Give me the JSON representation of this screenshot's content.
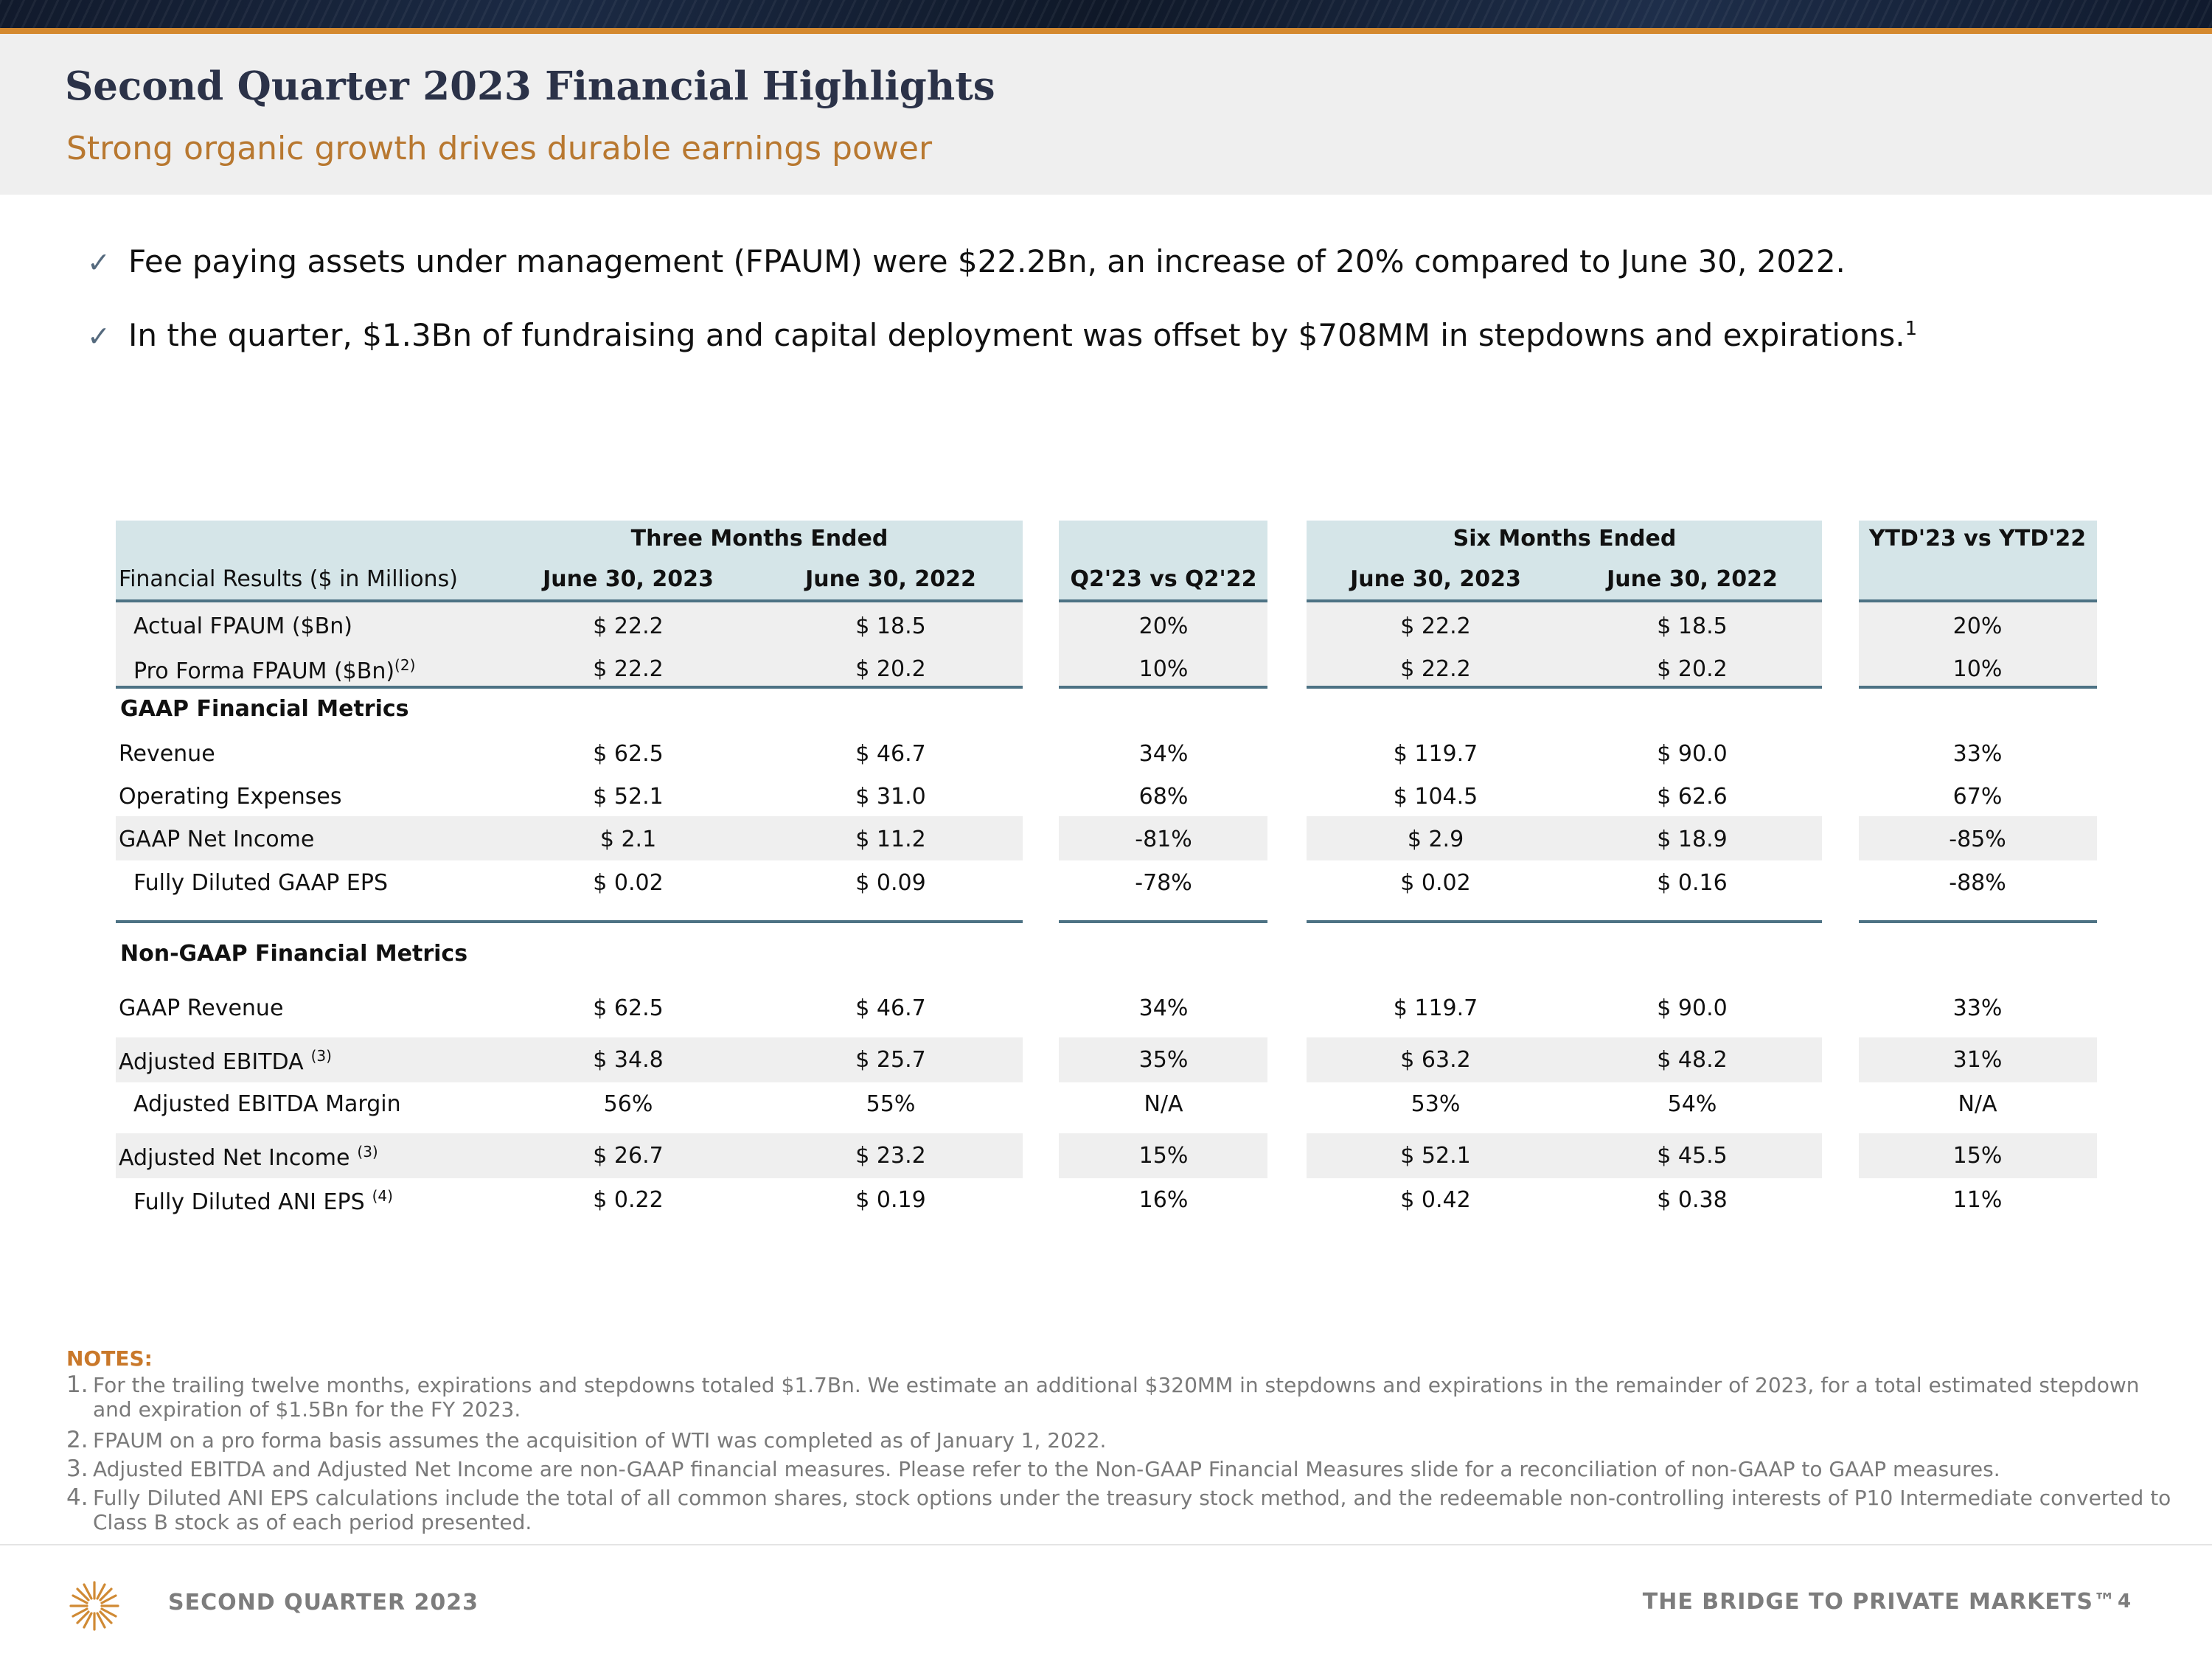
{
  "header": {
    "title": "Second Quarter 2023 Financial Highlights",
    "subtitle": "Strong organic growth drives durable earnings power"
  },
  "bullets": [
    {
      "text": "Fee paying assets under management (FPAUM) were $22.2Bn, an increase of 20% compared to June 30, 2022.",
      "sup": ""
    },
    {
      "text": "In the quarter, $1.3Bn of fundraising and capital deployment was offset by $708MM in stepdowns and expirations.",
      "sup": "1"
    }
  ],
  "bullet_icon": "checkmark-icon",
  "table": {
    "group_headers": {
      "three_months": "Three Months Ended",
      "six_months": "Six Months Ended",
      "ytd": "YTD'23 vs YTD'22"
    },
    "columns": {
      "label": "Financial Results ($ in Millions)",
      "q_2023": "June 30, 2023",
      "q_2022": "June 30, 2022",
      "q_change": "Q2'23 vs Q2'22",
      "s_2023": "June 30, 2023",
      "s_2022": "June 30, 2022"
    },
    "sections": {
      "gaap": "GAAP Financial Metrics",
      "non_gaap": "Non-GAAP Financial Metrics"
    },
    "rows": [
      {
        "label": "Actual FPAUM ($Bn)",
        "sup": "",
        "q23": "$ 22.2",
        "q22": "$ 18.5",
        "qchg": "20%",
        "s23": "$ 22.2",
        "s22": "$ 18.5",
        "ytd": "20%"
      },
      {
        "label": "Pro Forma FPAUM ($Bn)",
        "sup": "(2)",
        "q23": "$ 22.2",
        "q22": "$ 20.2",
        "qchg": "10%",
        "s23": "$ 22.2",
        "s22": "$ 20.2",
        "ytd": "10%"
      },
      {
        "label": "Revenue",
        "sup": "",
        "q23": "$ 62.5",
        "q22": "$ 46.7",
        "qchg": "34%",
        "s23": "$ 119.7",
        "s22": "$ 90.0",
        "ytd": "33%"
      },
      {
        "label": "Operating Expenses",
        "sup": "",
        "q23": "$ 52.1",
        "q22": "$ 31.0",
        "qchg": "68%",
        "s23": "$ 104.5",
        "s22": "$ 62.6",
        "ytd": "67%"
      },
      {
        "label": "GAAP Net Income",
        "sup": "",
        "q23": "$ 2.1",
        "q22": "$ 11.2",
        "qchg": "-81%",
        "s23": "$ 2.9",
        "s22": "$ 18.9",
        "ytd": "-85%"
      },
      {
        "label": "Fully Diluted GAAP EPS",
        "sup": "",
        "q23": "$ 0.02",
        "q22": "$ 0.09",
        "qchg": "-78%",
        "s23": "$ 0.02",
        "s22": "$ 0.16",
        "ytd": "-88%"
      },
      {
        "label": "GAAP Revenue",
        "sup": "",
        "q23": "$ 62.5",
        "q22": "$ 46.7",
        "qchg": "34%",
        "s23": "$ 119.7",
        "s22": "$ 90.0",
        "ytd": "33%"
      },
      {
        "label": "Adjusted EBITDA",
        "sup": "(3)",
        "q23": "$ 34.8",
        "q22": "$ 25.7",
        "qchg": "35%",
        "s23": "$ 63.2",
        "s22": "$ 48.2",
        "ytd": "31%"
      },
      {
        "label": "Adjusted EBITDA Margin",
        "sup": "",
        "q23": "56%",
        "q22": "55%",
        "qchg": "N/A",
        "s23": "53%",
        "s22": "54%",
        "ytd": "N/A"
      },
      {
        "label": "Adjusted Net Income",
        "sup": "(3)",
        "q23": "$ 26.7",
        "q22": "$ 23.2",
        "qchg": "15%",
        "s23": "$ 52.1",
        "s22": "$ 45.5",
        "ytd": "15%"
      },
      {
        "label": "Fully Diluted ANI EPS",
        "sup": "(4)",
        "q23": "$ 0.22",
        "q22": "$ 0.19",
        "qchg": "16%",
        "s23": "$ 0.42",
        "s22": "$ 0.38",
        "ytd": "11%"
      }
    ]
  },
  "notes": {
    "heading": "NOTES:",
    "items": [
      {
        "num": "1.",
        "text": "For the trailing twelve months, expirations and stepdowns totaled $1.7Bn. We estimate an additional $320MM in stepdowns and expirations in the remainder of 2023, for a total estimated stepdown and expiration of $1.5Bn for the FY 2023."
      },
      {
        "num": "2.",
        "text": "FPAUM on a pro forma basis assumes the acquisition of WTI was completed as of January 1, 2022."
      },
      {
        "num": "3.",
        "text": "Adjusted EBITDA and Adjusted Net Income are non-GAAP financial measures. Please refer to the Non-GAAP Financial Measures slide for a reconciliation of non-GAAP to GAAP measures."
      },
      {
        "num": "4.",
        "text": "Fully Diluted ANI EPS calculations include the total of all common shares, stock options under the treasury stock method, and the redeemable non-controlling interests of P10 Intermediate converted to Class B stock as of each period presented."
      }
    ]
  },
  "footer": {
    "left": "SECOND QUARTER 2023",
    "right": "THE BRIDGE TO PRIVATE MARKETS™",
    "page": "4",
    "logo_icon": "p10-logo-icon"
  },
  "colors": {
    "title": "#2b3248",
    "accent_orange": "#b87830",
    "header_cell": "#d5e5e8",
    "rule": "#4d7284"
  }
}
